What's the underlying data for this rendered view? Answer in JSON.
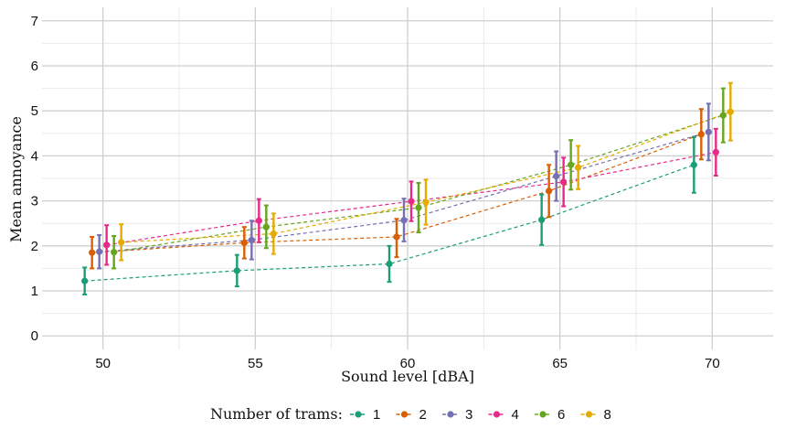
{
  "chart_data": {
    "type": "line",
    "xlabel": "Sound level [dBA]",
    "ylabel": "Mean annoyance",
    "x": [
      50,
      55,
      60,
      65,
      70
    ],
    "xlim": [
      48,
      72
    ],
    "ylim": [
      -0.3,
      7.3
    ],
    "xticks": [
      50,
      55,
      60,
      65,
      70
    ],
    "yticks": [
      0,
      1,
      2,
      3,
      4,
      5,
      6,
      7
    ],
    "grid": true,
    "line_style": "dashed",
    "error_bars": true,
    "legend": {
      "title": "Number of trams:",
      "position": "bottom"
    },
    "series": [
      {
        "name": "1",
        "color": "#1b9e77",
        "dodge": -0.6,
        "values": [
          1.22,
          1.45,
          1.6,
          2.58,
          3.8
        ],
        "lower": [
          0.92,
          1.1,
          1.2,
          2.02,
          3.18
        ],
        "upper": [
          1.52,
          1.8,
          2.0,
          3.14,
          4.42
        ]
      },
      {
        "name": "2",
        "color": "#d95f02",
        "dodge": -0.36,
        "values": [
          1.85,
          2.07,
          2.2,
          3.22,
          4.48
        ],
        "lower": [
          1.5,
          1.72,
          1.75,
          2.64,
          3.92
        ],
        "upper": [
          2.2,
          2.42,
          2.6,
          3.8,
          5.04
        ]
      },
      {
        "name": "3",
        "color": "#7570b3",
        "dodge": -0.12,
        "values": [
          1.87,
          2.13,
          2.57,
          3.55,
          4.53
        ],
        "lower": [
          1.5,
          1.7,
          2.1,
          3.0,
          3.9
        ],
        "upper": [
          2.24,
          2.56,
          3.05,
          4.1,
          5.16
        ]
      },
      {
        "name": "4",
        "color": "#e7298a",
        "dodge": 0.12,
        "values": [
          2.02,
          2.56,
          2.99,
          3.42,
          4.08
        ],
        "lower": [
          1.58,
          2.08,
          2.55,
          2.88,
          3.56
        ],
        "upper": [
          2.46,
          3.04,
          3.43,
          3.96,
          4.6
        ]
      },
      {
        "name": "6",
        "color": "#66a61e",
        "dodge": 0.36,
        "values": [
          1.86,
          2.42,
          2.85,
          3.8,
          4.9
        ],
        "lower": [
          1.5,
          1.95,
          2.3,
          3.25,
          4.3
        ],
        "upper": [
          2.22,
          2.9,
          3.4,
          4.35,
          5.5
        ]
      },
      {
        "name": "8",
        "color": "#e6ab02",
        "dodge": 0.6,
        "values": [
          2.08,
          2.27,
          2.97,
          3.74,
          4.98
        ],
        "lower": [
          1.68,
          1.82,
          2.47,
          3.26,
          4.34
        ],
        "upper": [
          2.48,
          2.72,
          3.47,
          4.22,
          5.62
        ]
      }
    ]
  }
}
